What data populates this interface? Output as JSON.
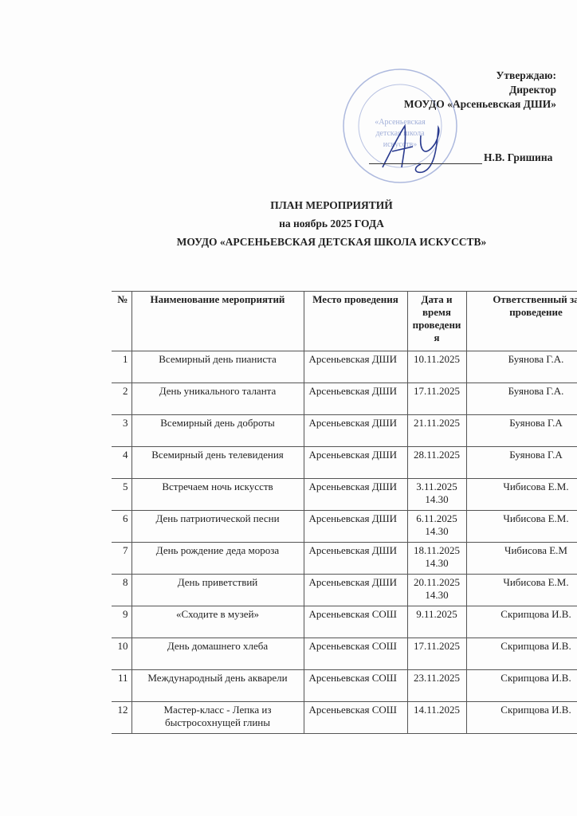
{
  "approval": {
    "line1": "Утверждаю:",
    "line2": "Директор",
    "line3": "МОУДО «Арсеньевская  ДШИ»",
    "signatory": "Н.В. Гришина",
    "stamp_text": "«Арсеньевская детская школа искусств»",
    "stamp_color": "#8a9bd0"
  },
  "title": {
    "line1": "ПЛАН   МЕРОПРИЯТИЙ",
    "line2": "на ноябрь 2025 ГОДА",
    "line3": "МОУДО «АРСЕНЬЕВСКАЯ  ДЕТСКАЯ ШКОЛА ИСКУССТВ»"
  },
  "table": {
    "headers": [
      "№",
      "Наименование мероприятий",
      "Место проведения",
      "Дата и время проведени я",
      "Ответственный за проведение"
    ],
    "rows": [
      {
        "n": "1",
        "name": "Всемирный день пианиста",
        "place": "Арсеньевская ДШИ",
        "date": "10.11.2025",
        "time": "",
        "resp": "Буянова Г.А."
      },
      {
        "n": "2",
        "name": "День уникального таланта",
        "place": "Арсеньевская ДШИ",
        "date": "17.11.2025",
        "time": "",
        "resp": "Буянова Г.А."
      },
      {
        "n": "3",
        "name": "Всемирный день доброты",
        "place": "Арсеньевская ДШИ",
        "date": "21.11.2025",
        "time": "",
        "resp": "Буянова Г.А"
      },
      {
        "n": "4",
        "name": "Всемирный день телевидения",
        "place": "Арсеньевская ДШИ",
        "date": "28.11.2025",
        "time": "",
        "resp": "Буянова Г.А"
      },
      {
        "n": "5",
        "name": "Встречаем ночь искусств",
        "place": "Арсеньевская ДШИ",
        "date": "3.11.2025",
        "time": "14.30",
        "resp": "Чибисова Е.М."
      },
      {
        "n": "6",
        "name": "День патриотической песни",
        "place": "Арсеньевская ДШИ",
        "date": "6.11.2025",
        "time": "14.30",
        "resp": "Чибисова Е.М."
      },
      {
        "n": "7",
        "name": "День рождение деда мороза",
        "place": "Арсеньевская ДШИ",
        "date": "18.11.2025",
        "time": "14.30",
        "resp": "Чибисова Е.М"
      },
      {
        "n": "8",
        "name": "День приветствий",
        "place": "Арсеньевская ДШИ",
        "date": "20.11.2025",
        "time": "14.30",
        "resp": "Чибисова Е.М."
      },
      {
        "n": "9",
        "name": "«Сходите в музей»",
        "place": "Арсеньевская СОШ",
        "date": "9.11.2025",
        "time": "",
        "resp": "Скрипцова И.В."
      },
      {
        "n": "10",
        "name": "День домашнего хлеба",
        "place": "Арсеньевская СОШ",
        "date": "17.11.2025",
        "time": "",
        "resp": "Скрипцова И.В."
      },
      {
        "n": "11",
        "name": "Международный день акварели",
        "place": "Арсеньевская СОШ",
        "date": "23.11.2025",
        "time": "",
        "resp": "Скрипцова И.В."
      },
      {
        "n": "12",
        "name": "Мастер-класс - Лепка из быстросохнущей глины",
        "place": "Арсеньевская СОШ",
        "date": "14.11.2025",
        "time": "",
        "resp": "Скрипцова И.В."
      }
    ]
  }
}
